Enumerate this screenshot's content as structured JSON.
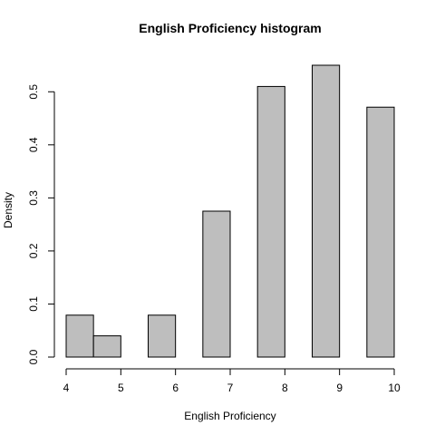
{
  "chart_data": {
    "type": "bar",
    "title": "English Proficiency histogram",
    "xlabel": "English Proficiency",
    "ylabel": "Density",
    "bin_edges": [
      4,
      4.5,
      5,
      5.5,
      6,
      6.5,
      7,
      7.5,
      8,
      8.5,
      9,
      9.5,
      10
    ],
    "values": [
      0.079,
      0.04,
      0,
      0.079,
      0,
      0.275,
      0,
      0.51,
      0,
      0.55,
      0,
      0.471
    ],
    "xlim": [
      4,
      10
    ],
    "ylim": [
      0,
      0.55
    ],
    "xticks": [
      "4",
      "5",
      "6",
      "7",
      "8",
      "9",
      "10"
    ],
    "yticks": [
      "0.0",
      "0.1",
      "0.2",
      "0.3",
      "0.4",
      "0.5"
    ],
    "grid": false,
    "bar_color": "#bebebe",
    "edge_color": "#000000"
  }
}
